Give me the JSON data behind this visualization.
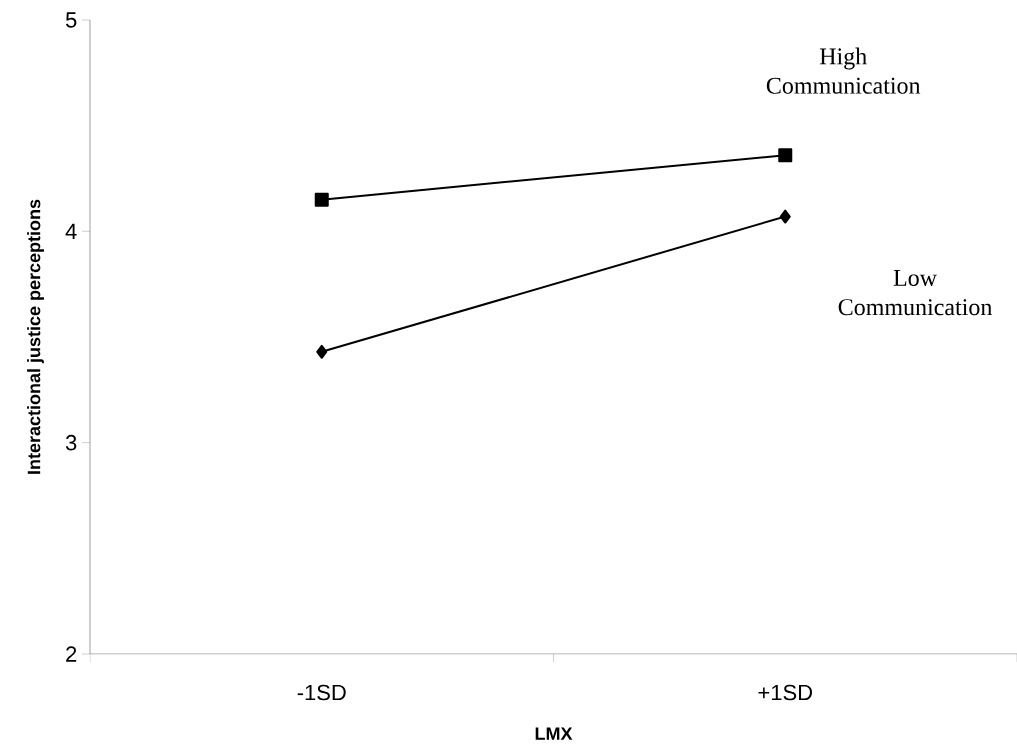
{
  "chart_data": {
    "type": "line",
    "xlabel": "LMX",
    "ylabel": "Interactional justice perceptions",
    "categories": [
      "-1SD",
      "+1SD"
    ],
    "series": [
      {
        "name": "High Communication",
        "color": "#000000",
        "values": [
          4.15,
          4.36
        ],
        "marker": "square"
      },
      {
        "name": "Low Communication",
        "color": "#000000",
        "values": [
          3.43,
          4.07
        ],
        "marker": "diamond"
      }
    ],
    "ylim": [
      2,
      5
    ],
    "yticks": [
      2,
      3,
      4,
      5
    ],
    "grid": false,
    "line_style": "solid"
  }
}
